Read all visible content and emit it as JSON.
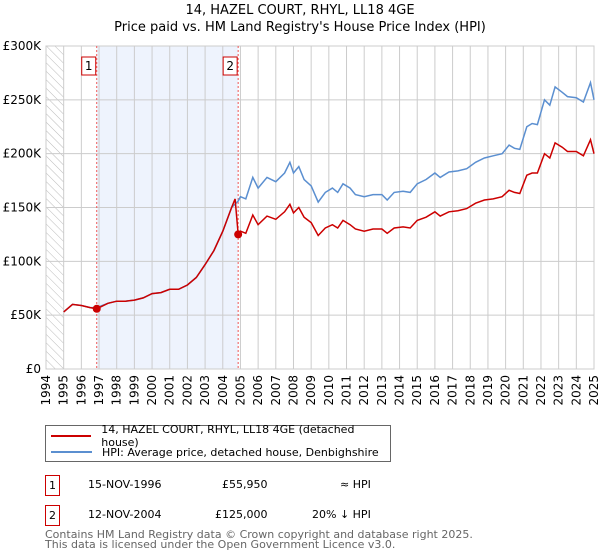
{
  "title_line1": "14, HAZEL COURT, RHYL, LL18 4GE",
  "title_line2": "Price paid vs. HM Land Registry's House Price Index (HPI)",
  "chart_data": {
    "type": "line",
    "xlim": [
      1994,
      2025
    ],
    "ylim": [
      0,
      300000
    ],
    "yticks": [
      0,
      50000,
      100000,
      150000,
      200000,
      250000,
      300000
    ],
    "ytick_labels": [
      "£0",
      "£50K",
      "£100K",
      "£150K",
      "£200K",
      "£250K",
      "£300K"
    ],
    "xticks": [
      1994,
      1995,
      1996,
      1997,
      1998,
      1999,
      2000,
      2001,
      2002,
      2003,
      2004,
      2005,
      2006,
      2007,
      2008,
      2009,
      2010,
      2011,
      2012,
      2013,
      2014,
      2015,
      2016,
      2017,
      2018,
      2019,
      2020,
      2021,
      2022,
      2023,
      2024,
      2025
    ],
    "grid": true,
    "shaded_range": [
      1996.87,
      2004.87
    ],
    "hatched_range": [
      1994,
      1995
    ],
    "colors": {
      "property": "#cc0000",
      "hpi": "#5b8fd0",
      "shade": "#eef3fd"
    },
    "series": [
      {
        "name": "14, HAZEL COURT, RHYL, LL18 4GE (detached house)",
        "key": "property",
        "x": [
          1995,
          1995.5,
          1996,
          1996.5,
          1996.87,
          1997.5,
          1998,
          1998.5,
          1999,
          1999.5,
          2000,
          2000.5,
          2001,
          2001.5,
          2002,
          2002.5,
          2003,
          2003.5,
          2004,
          2004.5,
          2004.7,
          2004.87,
          2005,
          2005.3,
          2005.7,
          2006,
          2006.5,
          2007,
          2007.5,
          2007.8,
          2008,
          2008.3,
          2008.6,
          2009,
          2009.4,
          2009.8,
          2010.2,
          2010.5,
          2010.8,
          2011.2,
          2011.5,
          2012,
          2012.5,
          2013,
          2013.3,
          2013.7,
          2014.2,
          2014.6,
          2015,
          2015.5,
          2016,
          2016.3,
          2016.8,
          2017.3,
          2017.8,
          2018.3,
          2018.8,
          2019.3,
          2019.8,
          2020.2,
          2020.5,
          2020.8,
          2021.2,
          2021.5,
          2021.8,
          2022.2,
          2022.5,
          2022.8,
          2023.2,
          2023.5,
          2024,
          2024.4,
          2024.8,
          2025
        ],
        "y": [
          53000,
          60000,
          59000,
          57000,
          55950,
          61000,
          63000,
          63000,
          64000,
          66000,
          70000,
          71000,
          74000,
          74000,
          78000,
          85000,
          97000,
          110000,
          128000,
          150000,
          158000,
          125000,
          128000,
          126000,
          143000,
          134000,
          142000,
          139000,
          146000,
          153000,
          145000,
          150000,
          141000,
          136000,
          124000,
          131000,
          134000,
          131000,
          138000,
          134000,
          130000,
          128000,
          130000,
          130000,
          126000,
          131000,
          132000,
          131000,
          138000,
          141000,
          146000,
          142000,
          146000,
          147000,
          149000,
          154000,
          157000,
          158000,
          160000,
          166000,
          164000,
          163000,
          180000,
          182000,
          182000,
          200000,
          196000,
          210000,
          206000,
          202000,
          202000,
          198000,
          213000,
          200000
        ]
      },
      {
        "name": "HPI: Average price, detached house, Denbighshire",
        "key": "hpi",
        "x": [
          1995,
          1995.5,
          1996,
          1996.5,
          1996.87,
          1997.5,
          1998,
          1998.5,
          1999,
          1999.5,
          2000,
          2000.5,
          2001,
          2001.5,
          2002,
          2002.5,
          2003,
          2003.5,
          2004,
          2004.5,
          2004.87,
          2005,
          2005.3,
          2005.7,
          2006,
          2006.5,
          2007,
          2007.5,
          2007.8,
          2008,
          2008.3,
          2008.6,
          2009,
          2009.4,
          2009.8,
          2010.2,
          2010.5,
          2010.8,
          2011.2,
          2011.5,
          2012,
          2012.5,
          2013,
          2013.3,
          2013.7,
          2014.2,
          2014.6,
          2015,
          2015.5,
          2016,
          2016.3,
          2016.8,
          2017.3,
          2017.8,
          2018.3,
          2018.8,
          2019.3,
          2019.8,
          2020.2,
          2020.5,
          2020.8,
          2021.2,
          2021.5,
          2021.8,
          2022.2,
          2022.5,
          2022.8,
          2023.2,
          2023.5,
          2024,
          2024.4,
          2024.8,
          2025
        ],
        "y": [
          53000,
          60000,
          59000,
          57000,
          57000,
          61000,
          63000,
          63000,
          64000,
          66000,
          70000,
          71000,
          74000,
          74000,
          78000,
          85000,
          97000,
          110000,
          128000,
          150000,
          156000,
          160000,
          158000,
          178000,
          168000,
          178000,
          174000,
          182000,
          192000,
          182000,
          188000,
          176000,
          170000,
          155000,
          164000,
          168000,
          164000,
          172000,
          168000,
          162000,
          160000,
          162000,
          162000,
          157000,
          164000,
          165000,
          164000,
          172000,
          176000,
          182000,
          178000,
          183000,
          184000,
          186000,
          192000,
          196000,
          198000,
          200000,
          208000,
          205000,
          204000,
          225000,
          228000,
          227000,
          250000,
          245000,
          262000,
          257000,
          253000,
          252000,
          248000,
          266000,
          250000
        ]
      }
    ],
    "markers": [
      {
        "label": "1",
        "x": 1996.87,
        "y": 55950
      },
      {
        "label": "2",
        "x": 2004.87,
        "y": 125000
      }
    ]
  },
  "legend": {
    "property": "14, HAZEL COURT, RHYL, LL18 4GE (detached house)",
    "hpi": "HPI: Average price, detached house, Denbighshire"
  },
  "transactions": [
    {
      "num": "1",
      "date": "15-NOV-1996",
      "price": "£55,950",
      "hpi": "≈ HPI"
    },
    {
      "num": "2",
      "date": "12-NOV-2004",
      "price": "£125,000",
      "hpi": "20% ↓ HPI"
    }
  ],
  "footer": {
    "line1": "Contains HM Land Registry data © Crown copyright and database right 2025.",
    "line2": "This data is licensed under the Open Government Licence v3.0."
  }
}
